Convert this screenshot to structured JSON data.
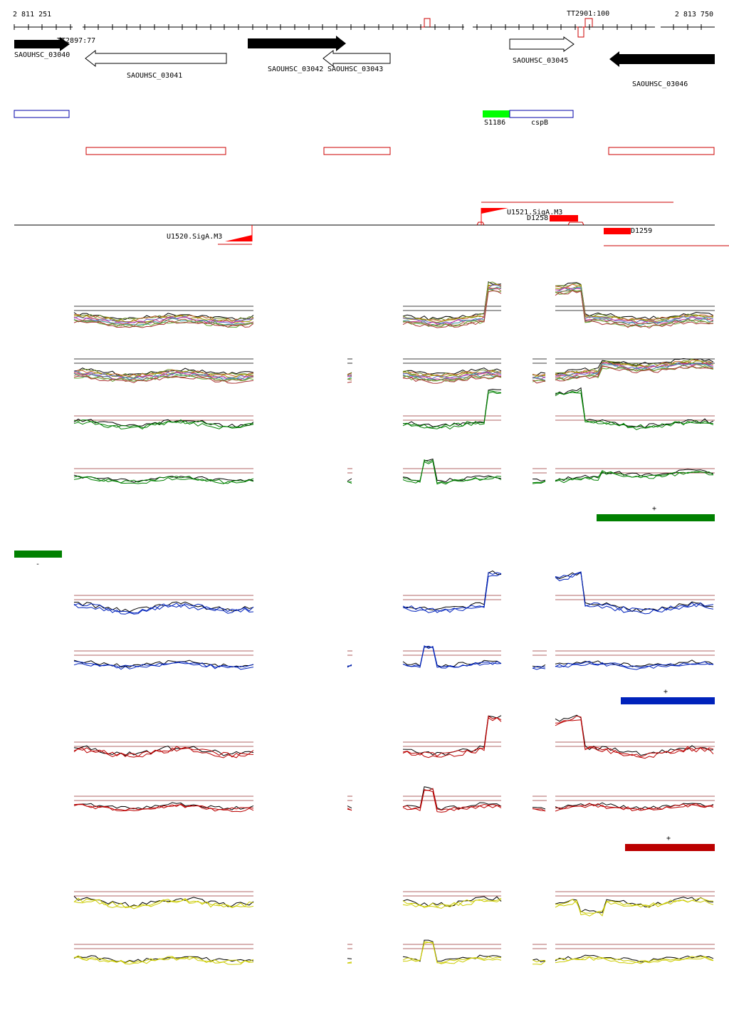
{
  "coordinates": {
    "start": "2 811 251",
    "end": "2 813 750"
  },
  "terminators": [
    {
      "label": "TT2897:77",
      "strand": "minus"
    },
    {
      "label": "TT2901:100",
      "strand": "plus"
    }
  ],
  "genes": [
    {
      "label": "SAOUHSC_03040",
      "strand": "+",
      "style": "filled"
    },
    {
      "label": "SAOUHSC_03041",
      "strand": "-",
      "style": "outline"
    },
    {
      "label": "SAOUHSC_03042",
      "strand": "+",
      "style": "filled"
    },
    {
      "label": "SAOUHSC_03043",
      "strand": "-",
      "style": "outline"
    },
    {
      "label": "SAOUHSC_03045",
      "strand": "+",
      "style": "outline"
    },
    {
      "label": "SAOUHSC_03046",
      "strand": "-",
      "style": "filled"
    }
  ],
  "features": [
    {
      "label": "S1186",
      "color": "#00ff00"
    },
    {
      "label": "cspB",
      "color": "#0000aa"
    }
  ],
  "promoters": [
    {
      "label": "U1520.SigA.M3",
      "strand": "-"
    },
    {
      "label": "U1521.SigA.M3",
      "strand": "+"
    }
  ],
  "segments": [
    {
      "label": "D1258",
      "color": "#ff0000"
    },
    {
      "label": "D1259",
      "color": "#ff0000"
    }
  ],
  "strand_marks": {
    "plus": "+",
    "minus": "-"
  },
  "colors": {
    "green": "#008000",
    "blue": "#0022bb",
    "red": "#bb0000",
    "yellow": "#cccc00",
    "axis": "#000000",
    "threshold": "#993333"
  }
}
